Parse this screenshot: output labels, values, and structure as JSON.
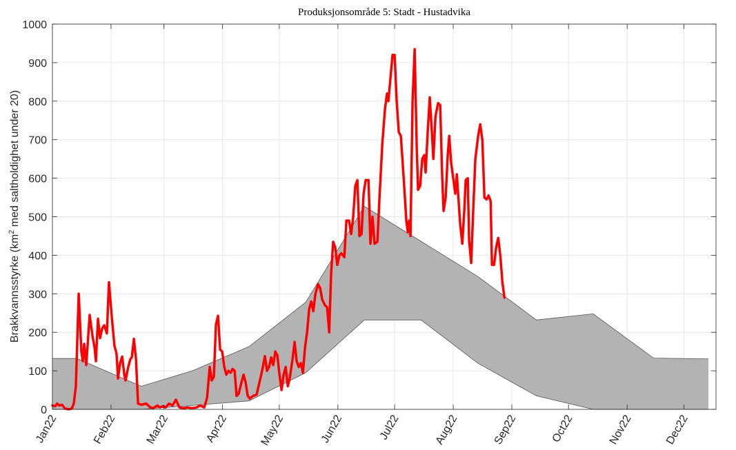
{
  "chart_data": {
    "type": "line",
    "title": "Produksjonsområde 5: Stadt - Hustadvika",
    "ylabel": [
      "Brakkvannsstyrke (km",
      "2",
      " med saltholdighet under 20)"
    ],
    "xlim": [
      0,
      351
    ],
    "xticks": [
      {
        "value": 0,
        "label": "Jan22"
      },
      {
        "value": 31,
        "label": "Feb22"
      },
      {
        "value": 59,
        "label": "Mar22"
      },
      {
        "value": 90,
        "label": "Apr22"
      },
      {
        "value": 120,
        "label": "May22"
      },
      {
        "value": 151,
        "label": "Jun22"
      },
      {
        "value": 181,
        "label": "Jul22"
      },
      {
        "value": 212,
        "label": "Aug22"
      },
      {
        "value": 243,
        "label": "Sep22"
      },
      {
        "value": 273,
        "label": "Oct22"
      },
      {
        "value": 304,
        "label": "Nov22"
      },
      {
        "value": 334,
        "label": "Dec22"
      }
    ],
    "ylim": [
      0,
      1000
    ],
    "yticks": [
      0,
      100,
      200,
      300,
      400,
      500,
      600,
      700,
      800,
      900,
      1000
    ],
    "grid": true,
    "band": {
      "color": "#b3b3b3",
      "edge_color": "#555555",
      "x": [
        0,
        13,
        47,
        74,
        104,
        134,
        165,
        195,
        225,
        256,
        286,
        318,
        347
      ],
      "upper": [
        132,
        132,
        60,
        100,
        163,
        278,
        527,
        436,
        345,
        232,
        248,
        133,
        131
      ],
      "lower": [
        0,
        0,
        0,
        10,
        22,
        95,
        232,
        232,
        120,
        35,
        0,
        0,
        0
      ]
    },
    "series": [
      {
        "color": "#ff0000",
        "x": [
          0,
          1.5,
          2.5,
          3.6,
          5.1,
          6.6,
          8.8,
          10.2,
          11.3,
          12.4,
          13.9,
          15.3,
          16.1,
          16.8,
          17.9,
          19.7,
          21.2,
          22.3,
          23,
          24.1,
          25.2,
          26.3,
          27.4,
          28.8,
          29.9,
          31.4,
          32.8,
          33.9,
          34.7,
          35.8,
          36.9,
          38,
          38.7,
          40.1,
          41.2,
          42,
          43.1,
          44.2,
          45.3,
          47.1,
          49.6,
          51.8,
          53.3,
          55.5,
          56.9,
          58.4,
          59.9,
          61.7,
          63.5,
          65.3,
          67.2,
          69.3,
          71.5,
          73.7,
          76.3,
          78.1,
          80.3,
          81.8,
          83.2,
          84.3,
          85.4,
          86.5,
          87.6,
          88.7,
          89.8,
          90.9,
          92,
          93.1,
          94.2,
          95.3,
          96.4,
          97.4,
          98.5,
          100,
          101.1,
          102.2,
          103.3,
          104.4,
          106.2,
          108,
          109.5,
          110.9,
          112.4,
          113.5,
          114.6,
          115.7,
          116.8,
          117.9,
          119,
          120.1,
          121.2,
          122.3,
          123.4,
          124.5,
          125.5,
          127,
          128.1,
          129.2,
          130.3,
          131.4,
          132.5,
          133.6,
          134.7,
          135.8,
          136.9,
          138,
          139.1,
          140.5,
          141.6,
          142.7,
          144.2,
          145.3,
          146.4,
          147.4,
          148.5,
          149.6,
          150.7,
          151.8,
          152.9,
          154.4,
          155.5,
          156.9,
          158,
          159.1,
          160.2,
          161.3,
          162.4,
          163.5,
          164.6,
          165.7,
          167.2,
          168.2,
          169.3,
          170.4,
          171.9,
          173,
          174.5,
          175.9,
          177,
          177.7,
          178.8,
          179.9,
          181,
          182.1,
          183.2,
          184.3,
          185.8,
          187.2,
          188,
          188.7,
          189.4,
          190.5,
          191.6,
          192.7,
          193.4,
          194.5,
          195.6,
          196.7,
          197.4,
          198.5,
          199.6,
          200.7,
          201.5,
          202.6,
          204,
          205.1,
          206.2,
          206.9,
          208,
          209.1,
          209.9,
          210.9,
          212,
          213.1,
          213.9,
          215,
          215.7,
          216.8,
          217.9,
          218.6,
          219.7,
          220.4,
          221.5,
          222.6,
          223.7,
          225.2,
          226.3,
          227.4,
          228.5,
          229.6,
          230.7,
          231.8,
          232.5,
          233.6,
          234.7,
          235.8,
          236.9,
          238,
          239.1
        ],
        "values": [
          10,
          8,
          15,
          10,
          12,
          2,
          0,
          2,
          15,
          60,
          300,
          150,
          125,
          170,
          115,
          245,
          190,
          160,
          125,
          235,
          185,
          210,
          218,
          197,
          330,
          240,
          165,
          145,
          80,
          120,
          137,
          90,
          75,
          110,
          130,
          135,
          183,
          130,
          15,
          12,
          15,
          5,
          3,
          10,
          5,
          8,
          5,
          15,
          10,
          25,
          5,
          3,
          5,
          3,
          5,
          10,
          5,
          30,
          110,
          75,
          85,
          220,
          243,
          155,
          150,
          110,
          90,
          100,
          95,
          105,
          100,
          35,
          40,
          70,
          90,
          70,
          35,
          28,
          35,
          38,
          70,
          100,
          138,
          100,
          110,
          135,
          115,
          150,
          140,
          90,
          50,
          90,
          110,
          60,
          80,
          130,
          175,
          125,
          110,
          120,
          95,
          160,
          200,
          260,
          280,
          255,
          300,
          325,
          315,
          285,
          270,
          265,
          200,
          350,
          435,
          420,
          375,
          400,
          405,
          395,
          490,
          490,
          455,
          500,
          580,
          595,
          450,
          455,
          560,
          595,
          595,
          430,
          500,
          430,
          435,
          550,
          690,
          780,
          820,
          800,
          860,
          920,
          920,
          800,
          720,
          710,
          600,
          490,
          460,
          490,
          450,
          800,
          935,
          680,
          570,
          580,
          650,
          660,
          615,
          720,
          810,
          720,
          650,
          760,
          795,
          790,
          600,
          515,
          550,
          660,
          710,
          640,
          600,
          560,
          610,
          530,
          480,
          430,
          520,
          595,
          600,
          440,
          380,
          520,
          650,
          710,
          740,
          700,
          550,
          545,
          555,
          540,
          375,
          375,
          420,
          445,
          400,
          330,
          290
        ]
      }
    ]
  }
}
